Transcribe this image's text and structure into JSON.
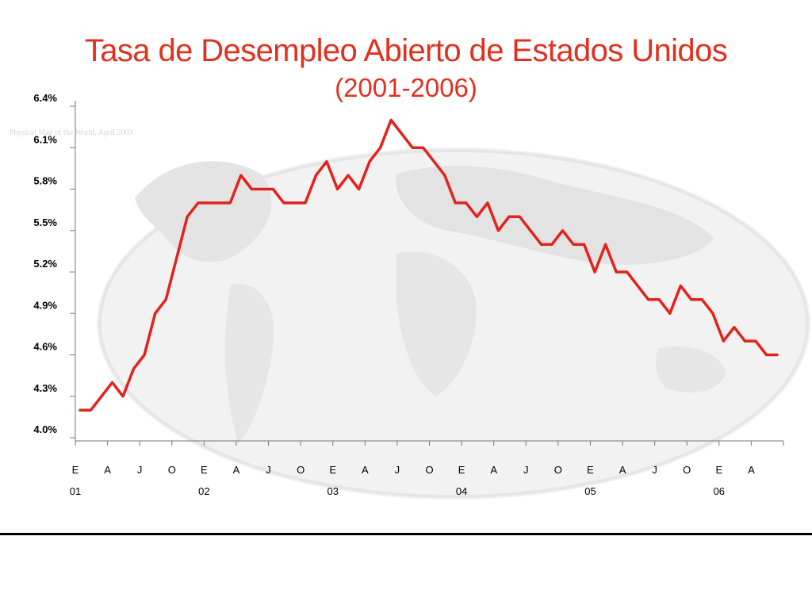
{
  "title": "Tasa de Desempleo Abierto de Estados Unidos",
  "subtitle": "(2001-2006)",
  "background_watermark": "Physical Map of the World, April 2003",
  "colors": {
    "title": "#e2301e",
    "line": "#e3221b",
    "axis": "#777777",
    "map": "#ececec"
  },
  "chart_data": {
    "type": "line",
    "title": "Tasa de Desempleo Abierto de Estados Unidos",
    "subtitle": "(2001-2006)",
    "ylim": [
      4.0,
      6.4
    ],
    "yticks": [
      "4.0%",
      "4.3%",
      "4.6%",
      "4.9%",
      "5.2%",
      "5.5%",
      "5.8%",
      "6.1%",
      "6.4%"
    ],
    "ytick_values": [
      4.0,
      4.3,
      4.6,
      4.9,
      5.2,
      5.5,
      5.8,
      6.1,
      6.4
    ],
    "month_labels": [
      "E",
      "A",
      "J",
      "O",
      "E",
      "A",
      "J",
      "O",
      "E",
      "A",
      "J",
      "O",
      "E",
      "A",
      "J",
      "O",
      "E",
      "A",
      "J",
      "O",
      "E",
      "A"
    ],
    "year_labels": [
      "01",
      "02",
      "03",
      "04",
      "05",
      "06"
    ],
    "grid": false,
    "legend": "none",
    "series": [
      {
        "color": "#e3221b",
        "values": [
          4.2,
          4.2,
          4.3,
          4.4,
          4.3,
          4.5,
          4.6,
          4.9,
          5.0,
          5.3,
          5.6,
          5.7,
          5.7,
          5.7,
          5.7,
          5.9,
          5.8,
          5.8,
          5.8,
          5.7,
          5.7,
          5.7,
          5.9,
          6.0,
          5.8,
          5.9,
          5.8,
          6.0,
          6.1,
          6.3,
          6.2,
          6.1,
          6.1,
          6.0,
          5.9,
          5.7,
          5.7,
          5.6,
          5.7,
          5.5,
          5.6,
          5.6,
          5.5,
          5.4,
          5.4,
          5.5,
          5.4,
          5.4,
          5.2,
          5.4,
          5.2,
          5.2,
          5.1,
          5.0,
          5.0,
          4.9,
          5.1,
          5.0,
          5.0,
          4.9,
          4.7,
          4.8,
          4.7,
          4.7,
          4.6,
          4.6
        ]
      }
    ]
  }
}
